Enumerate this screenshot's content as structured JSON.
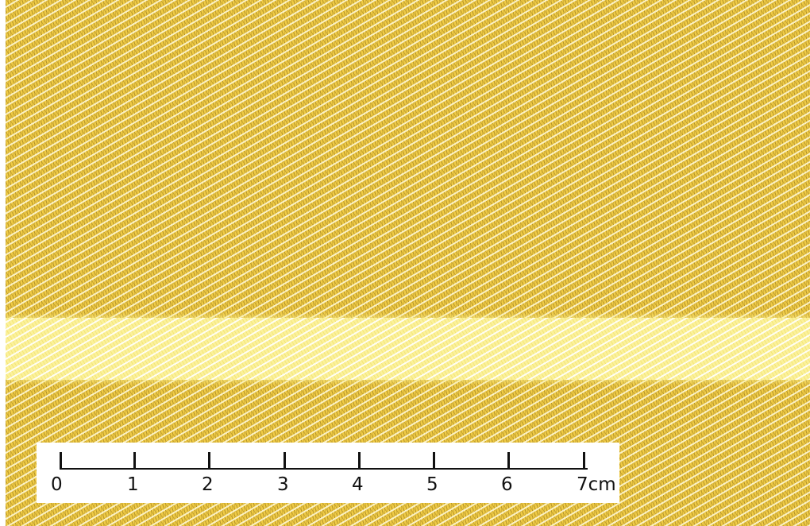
{
  "image": {
    "subject": "woven-fabric-swatch",
    "colors": {
      "fabric_base": "#f0cb45",
      "fabric_highlight": "#fffadc",
      "stripe": "#fbf19a",
      "scale_background": "#ffffff",
      "scale_ink": "#111111"
    }
  },
  "scale_bar": {
    "ticks": [
      "0",
      "1",
      "2",
      "3",
      "4",
      "5",
      "6",
      "7"
    ],
    "unit": "cm"
  }
}
